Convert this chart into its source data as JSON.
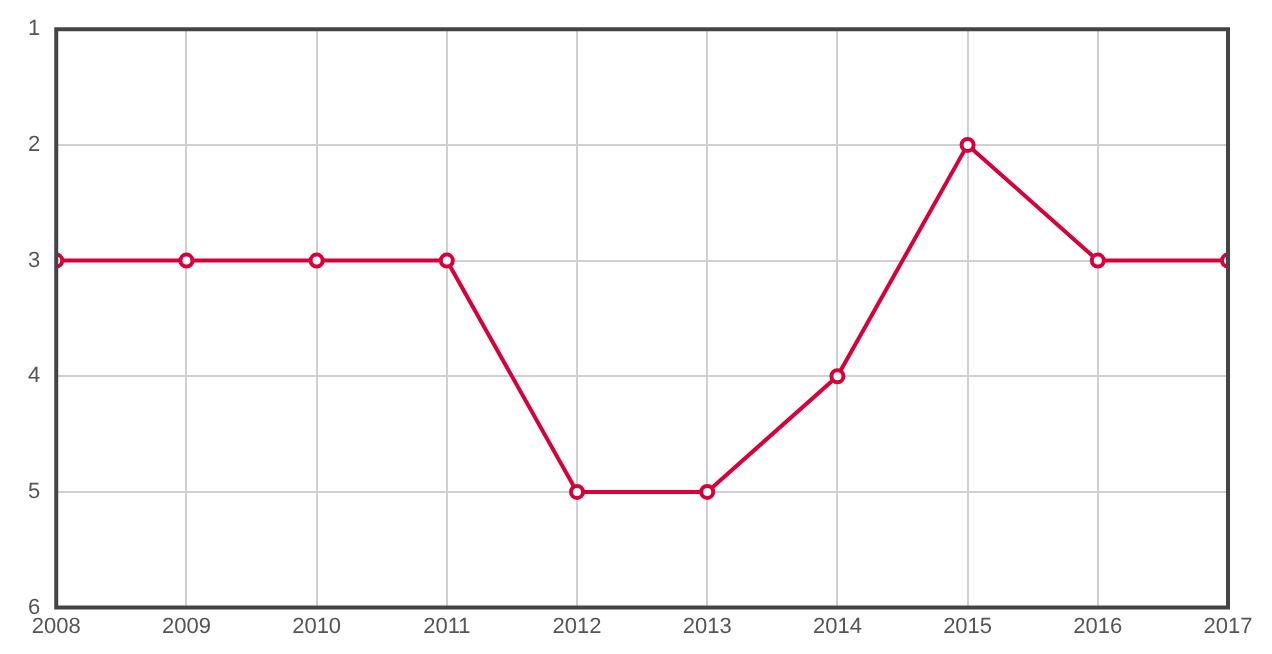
{
  "chart_data": {
    "type": "line",
    "x": [
      2008,
      2009,
      2010,
      2011,
      2012,
      2013,
      2014,
      2015,
      2016,
      2017
    ],
    "series": [
      {
        "color": "#d9003a",
        "values": [
          3,
          3,
          3,
          3,
          5,
          5,
          4,
          2,
          3,
          3
        ]
      }
    ],
    "xlim": [
      2008,
      2017
    ],
    "xticks": [
      2008,
      2009,
      2010,
      2011,
      2012,
      2013,
      2014,
      2015,
      2016,
      2017
    ],
    "ylim": [
      6,
      1
    ],
    "yticks": [
      1,
      2,
      3,
      4,
      5,
      6
    ],
    "grid": true,
    "legend": false,
    "marker": "circle",
    "line_style": "solid"
  }
}
